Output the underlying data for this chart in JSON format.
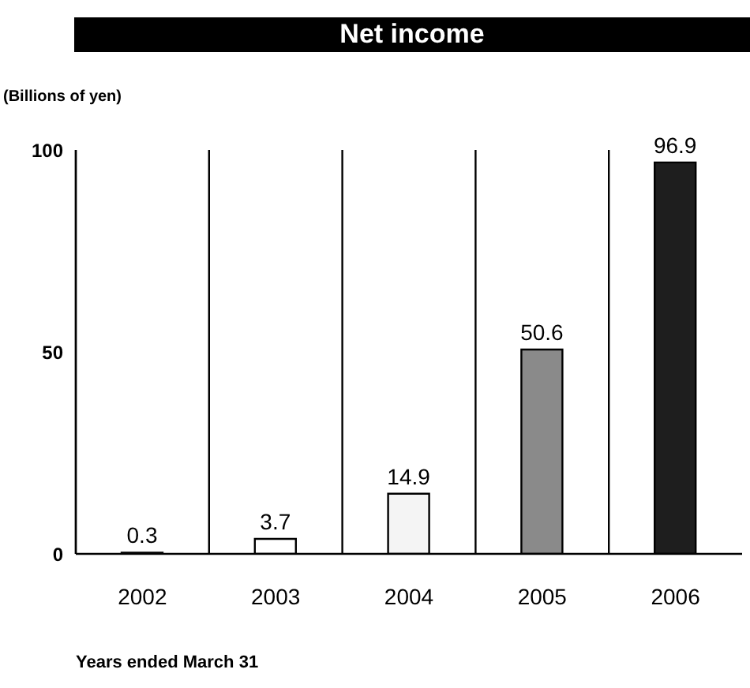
{
  "chart_data": {
    "type": "bar",
    "title": "Net income",
    "ylabel": "(Billions of yen)",
    "xlabel": "Years ended March 31",
    "categories": [
      "2002",
      "2003",
      "2004",
      "2005",
      "2006"
    ],
    "values": [
      0.3,
      3.7,
      14.9,
      50.6,
      96.9
    ],
    "colors": [
      "#ffffff",
      "#ffffff",
      "#f4f4f4",
      "#8a8a8a",
      "#1e1e1e"
    ],
    "ylim": [
      0,
      100
    ],
    "yticks": [
      0,
      50,
      100
    ],
    "grid": "x",
    "data_labels": true
  }
}
